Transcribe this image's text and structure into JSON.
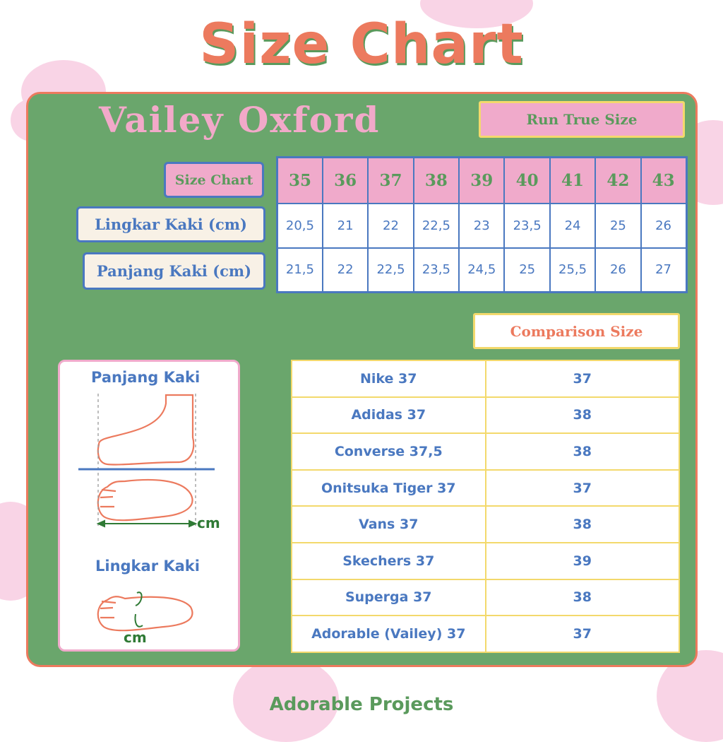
{
  "title": "Size Chart",
  "product": "Vailey Oxford",
  "fit_badge": "Run True Size",
  "size_table": {
    "header_label": "Size Chart",
    "sizes": [
      "35",
      "36",
      "37",
      "38",
      "39",
      "40",
      "41",
      "42",
      "43"
    ],
    "rows": [
      {
        "label": "Lingkar Kaki (cm)",
        "values": [
          "20,5",
          "21",
          "22",
          "22,5",
          "23",
          "23,5",
          "24",
          "25",
          "26"
        ]
      },
      {
        "label": "Panjang Kaki (cm)",
        "values": [
          "21,5",
          "22",
          "22,5",
          "23,5",
          "24,5",
          "25",
          "25,5",
          "26",
          "27"
        ]
      }
    ]
  },
  "comparison": {
    "title": "Comparison Size",
    "rows": [
      {
        "brand": "Nike 37",
        "size": "37"
      },
      {
        "brand": "Adidas 37",
        "size": "38"
      },
      {
        "brand": "Converse 37,5",
        "size": "38"
      },
      {
        "brand": "Onitsuka Tiger 37",
        "size": "37"
      },
      {
        "brand": "Vans 37",
        "size": "38"
      },
      {
        "brand": "Skechers 37",
        "size": "39"
      },
      {
        "brand": "Superga 37",
        "size": "38"
      },
      {
        "brand": "Adorable (Vailey) 37",
        "size": "37"
      }
    ]
  },
  "guide": {
    "length_label": "Panjang Kaki",
    "girth_label": "Lingkar Kaki",
    "unit": "cm"
  },
  "footer": "Adorable Projects",
  "colors": {
    "green": "#6aa66c",
    "coral": "#ec7a5e",
    "pink": "#f0aacb",
    "blue": "#4a78c0",
    "yellow": "#f3d96c",
    "cream": "#f8f1e6"
  }
}
